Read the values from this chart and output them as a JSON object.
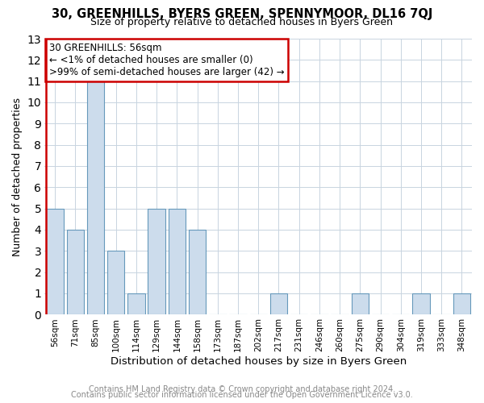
{
  "title1": "30, GREENHILLS, BYERS GREEN, SPENNYMOOR, DL16 7QJ",
  "title2": "Size of property relative to detached houses in Byers Green",
  "xlabel": "Distribution of detached houses by size in Byers Green",
  "ylabel": "Number of detached properties",
  "bar_labels": [
    "56sqm",
    "71sqm",
    "85sqm",
    "100sqm",
    "114sqm",
    "129sqm",
    "144sqm",
    "158sqm",
    "173sqm",
    "187sqm",
    "202sqm",
    "217sqm",
    "231sqm",
    "246sqm",
    "260sqm",
    "275sqm",
    "290sqm",
    "304sqm",
    "319sqm",
    "333sqm",
    "348sqm"
  ],
  "bar_values": [
    5,
    4,
    11,
    3,
    1,
    5,
    5,
    4,
    0,
    0,
    0,
    1,
    0,
    0,
    0,
    1,
    0,
    0,
    1,
    0,
    1
  ],
  "bar_color": "#ccdcec",
  "bar_edge_color": "#6699bb",
  "highlight_bar_index": 0,
  "highlight_bar_edge_color": "#cc0000",
  "annotation_title": "30 GREENHILLS: 56sqm",
  "annotation_line1": "← <1% of detached houses are smaller (0)",
  "annotation_line2": ">99% of semi-detached houses are larger (42) →",
  "annotation_box_edge_color": "#cc0000",
  "ylim": [
    0,
    13
  ],
  "yticks": [
    0,
    1,
    2,
    3,
    4,
    5,
    6,
    7,
    8,
    9,
    10,
    11,
    12,
    13
  ],
  "footer1": "Contains HM Land Registry data © Crown copyright and database right 2024.",
  "footer2": "Contains public sector information licensed under the Open Government Licence v3.0.",
  "bg_color": "#ffffff",
  "plot_bg_color": "#ffffff",
  "grid_color": "#c8d4e0"
}
